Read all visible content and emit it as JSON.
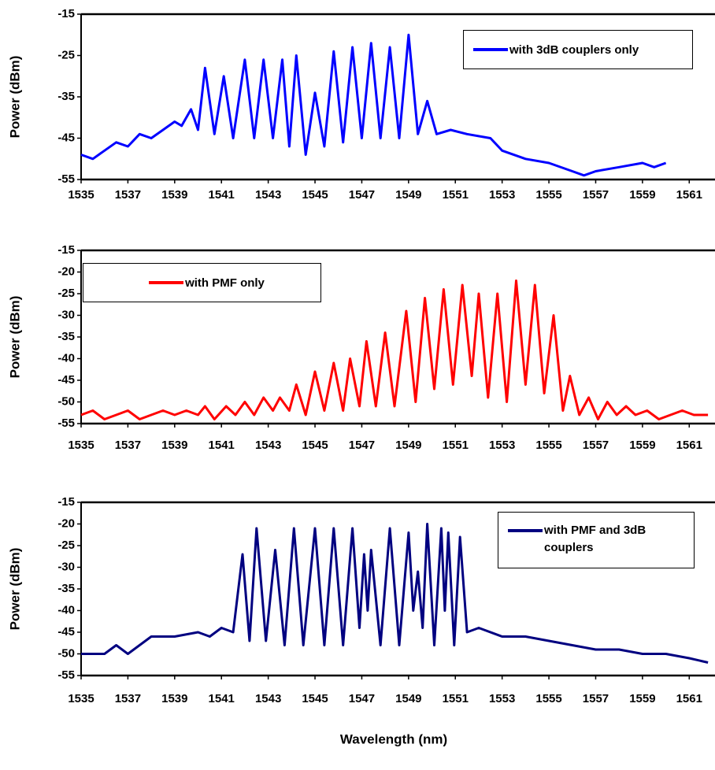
{
  "chart_data": [
    {
      "type": "line",
      "y_label": "Power (dBm)",
      "xlim": [
        1535,
        1562
      ],
      "xticks": [
        1535,
        1537,
        1539,
        1541,
        1543,
        1545,
        1547,
        1549,
        1551,
        1553,
        1555,
        1557,
        1559,
        1561
      ],
      "ylim": [
        -55,
        -15
      ],
      "yticks": [
        -15,
        -25,
        -35,
        -45,
        -55
      ],
      "legend": "upper right",
      "series": [
        {
          "name": "with 3dB couplers only",
          "color": "#0000ff",
          "x": [
            1535,
            1535.5,
            1536,
            1536.5,
            1537,
            1537.5,
            1538,
            1538.5,
            1539,
            1539.3,
            1539.7,
            1540,
            1540.3,
            1540.7,
            1541.1,
            1541.5,
            1542,
            1542.4,
            1542.8,
            1543.2,
            1543.6,
            1543.9,
            1544.2,
            1544.6,
            1545,
            1545.4,
            1545.8,
            1546.2,
            1546.6,
            1547,
            1547.4,
            1547.8,
            1548.2,
            1548.6,
            1549,
            1549.4,
            1549.8,
            1550.2,
            1550.8,
            1551.5,
            1552.5,
            1553,
            1554,
            1555,
            1556,
            1556.5,
            1557,
            1558,
            1559,
            1559.5,
            1560
          ],
          "values": [
            -49,
            -50,
            -48,
            -46,
            -47,
            -44,
            -45,
            -43,
            -41,
            -42,
            -38,
            -43,
            -28,
            -44,
            -30,
            -45,
            -26,
            -45,
            -26,
            -45,
            -26,
            -47,
            -25,
            -49,
            -34,
            -47,
            -24,
            -46,
            -23,
            -45,
            -22,
            -45,
            -23,
            -45,
            -20,
            -44,
            -36,
            -44,
            -43,
            -44,
            -45,
            -48,
            -50,
            -51,
            -53,
            -54,
            -53,
            -52,
            -51,
            -52,
            -51
          ]
        }
      ]
    },
    {
      "type": "line",
      "y_label": "Power (dBm)",
      "xlim": [
        1535,
        1562
      ],
      "xticks": [
        1535,
        1537,
        1539,
        1541,
        1543,
        1545,
        1547,
        1549,
        1551,
        1553,
        1555,
        1557,
        1559,
        1561
      ],
      "ylim": [
        -55,
        -15
      ],
      "yticks": [
        -15,
        -20,
        -25,
        -30,
        -35,
        -40,
        -45,
        -50,
        -55
      ],
      "legend": "upper left",
      "series": [
        {
          "name": "with PMF only",
          "color": "#ff0000",
          "x": [
            1535,
            1535.5,
            1536,
            1536.5,
            1537,
            1537.5,
            1538,
            1538.5,
            1539,
            1539.5,
            1540,
            1540.3,
            1540.7,
            1541.2,
            1541.6,
            1542,
            1542.4,
            1542.8,
            1543.2,
            1543.5,
            1543.9,
            1544.2,
            1544.6,
            1545,
            1545.4,
            1545.8,
            1546.2,
            1546.5,
            1546.9,
            1547.2,
            1547.6,
            1548,
            1548.4,
            1548.9,
            1549.3,
            1549.7,
            1550.1,
            1550.5,
            1550.9,
            1551.3,
            1551.7,
            1552,
            1552.4,
            1552.8,
            1553.2,
            1553.6,
            1554,
            1554.4,
            1554.8,
            1555.2,
            1555.6,
            1555.9,
            1556.3,
            1556.7,
            1557.1,
            1557.5,
            1557.9,
            1558.3,
            1558.7,
            1559.2,
            1559.7,
            1560.2,
            1560.7,
            1561.2,
            1561.8
          ],
          "values": [
            -53,
            -52,
            -54,
            -53,
            -52,
            -54,
            -53,
            -52,
            -53,
            -52,
            -53,
            -51,
            -54,
            -51,
            -53,
            -50,
            -53,
            -49,
            -52,
            -49,
            -52,
            -46,
            -53,
            -43,
            -52,
            -41,
            -52,
            -40,
            -51,
            -36,
            -51,
            -34,
            -51,
            -29,
            -50,
            -26,
            -47,
            -24,
            -46,
            -23,
            -44,
            -25,
            -49,
            -25,
            -50,
            -22,
            -46,
            -23,
            -48,
            -30,
            -52,
            -44,
            -53,
            -49,
            -54,
            -50,
            -53,
            -51,
            -53,
            -52,
            -54,
            -53,
            -52,
            -53,
            -53
          ]
        }
      ]
    },
    {
      "type": "line",
      "y_label": "Power (dBm)",
      "x_label": "Wavelength (nm)",
      "xlim": [
        1535,
        1562
      ],
      "xticks": [
        1535,
        1537,
        1539,
        1541,
        1543,
        1545,
        1547,
        1549,
        1551,
        1553,
        1555,
        1557,
        1559,
        1561
      ],
      "ylim": [
        -55,
        -15
      ],
      "yticks": [
        -15,
        -20,
        -25,
        -30,
        -35,
        -40,
        -45,
        -50,
        -55
      ],
      "legend": "upper right",
      "series": [
        {
          "name": "with PMF and 3dB couplers",
          "color": "#000080",
          "x": [
            1535,
            1536,
            1536.5,
            1537,
            1538,
            1539,
            1540,
            1540.5,
            1541,
            1541.5,
            1541.9,
            1542.2,
            1542.5,
            1542.9,
            1543.3,
            1543.7,
            1544.1,
            1544.5,
            1545,
            1545.4,
            1545.8,
            1546.2,
            1546.6,
            1546.9,
            1547.1,
            1547.25,
            1547.4,
            1547.8,
            1548.2,
            1548.6,
            1549,
            1549.2,
            1549.4,
            1549.6,
            1549.8,
            1550.1,
            1550.4,
            1550.55,
            1550.7,
            1550.95,
            1551.2,
            1551.5,
            1552,
            1553,
            1554,
            1555,
            1556,
            1557,
            1558,
            1559,
            1560,
            1561,
            1561.8
          ],
          "values": [
            -50,
            -50,
            -48,
            -50,
            -46,
            -46,
            -45,
            -46,
            -44,
            -45,
            -27,
            -47,
            -21,
            -47,
            -26,
            -48,
            -21,
            -48,
            -21,
            -48,
            -21,
            -48,
            -21,
            -44,
            -27,
            -40,
            -26,
            -48,
            -21,
            -48,
            -22,
            -40,
            -31,
            -44,
            -20,
            -48,
            -21,
            -40,
            -22,
            -48,
            -23,
            -45,
            -44,
            -46,
            -46,
            -47,
            -48,
            -49,
            -49,
            -50,
            -50,
            -51,
            -52
          ]
        }
      ]
    }
  ]
}
